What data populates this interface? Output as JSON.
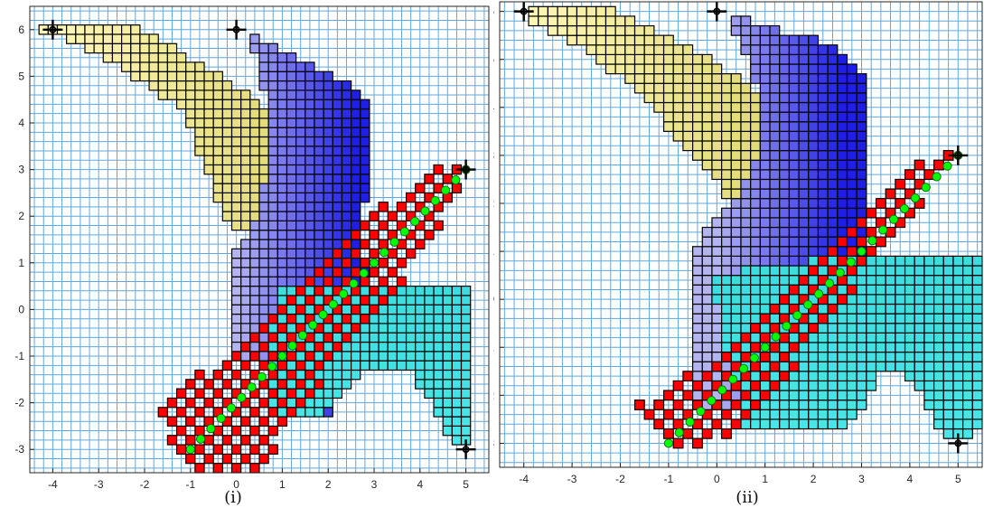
{
  "colors": {
    "grid": "#63a7da",
    "cell_edge": "#000000",
    "red": "#ff0000",
    "yellow": "#ffff7a",
    "blue_light": "#b4b4f0",
    "blue_dark": "#1e1ee6",
    "cyan": "#33e6e6",
    "path_fill": "#00ff00",
    "path_edge": "#1a6b1a",
    "marker": "#000000"
  },
  "chart_data": [
    {
      "type": "scatter",
      "caption": "(i)",
      "xlim": [
        -4.5,
        5.5
      ],
      "ylim": [
        -3.5,
        6.5
      ],
      "xticks": [
        "-4",
        "-3",
        "-2",
        "-1",
        "0",
        "1",
        "2",
        "3",
        "4",
        "5"
      ],
      "yticks": [
        "-3",
        "-2",
        "-1",
        "0",
        "1",
        "2",
        "3",
        "4",
        "5",
        "6"
      ],
      "grid": true,
      "markers": [
        {
          "x": -4,
          "y": 6
        },
        {
          "x": 0,
          "y": 6
        },
        {
          "x": 5,
          "y": 3
        },
        {
          "x": 5,
          "y": -3
        }
      ],
      "path": {
        "start": [
          -1,
          -3
        ],
        "end": [
          5,
          3
        ],
        "points": 28
      },
      "regions": {
        "yellow": [
          [
            -4.2,
            6.1
          ],
          [
            -2.2,
            6.1
          ],
          [
            -1.2,
            5.5
          ],
          [
            0.3,
            4.6
          ],
          [
            1.2,
            3.5
          ],
          [
            1.0,
            2.4
          ],
          [
            0.5,
            1.7
          ],
          [
            -0.1,
            1.7
          ],
          [
            -0.5,
            2.6
          ],
          [
            -1.2,
            4.3
          ],
          [
            -2.5,
            5.2
          ],
          [
            -3.6,
            5.8
          ],
          [
            -4.2,
            6.0
          ]
        ],
        "blue": [
          [
            0.2,
            6.0
          ],
          [
            1.3,
            5.4
          ],
          [
            2.6,
            4.8
          ],
          [
            2.9,
            4.4
          ],
          [
            2.9,
            3.0
          ],
          [
            2.7,
            1.5
          ],
          [
            2.9,
            0.5
          ],
          [
            2.9,
            -0.8
          ],
          [
            2.0,
            -2.3
          ],
          [
            0.8,
            -2.3
          ],
          [
            0.6,
            -1.0
          ],
          [
            0.0,
            -1.0
          ],
          [
            0.0,
            1.2
          ],
          [
            0.3,
            1.5
          ],
          [
            0.5,
            2.3
          ],
          [
            0.8,
            3.3
          ],
          [
            0.7,
            4.4
          ],
          [
            0.5,
            5.2
          ],
          [
            0.2,
            5.9
          ]
        ],
        "cyan": [
          [
            0.9,
            0.5
          ],
          [
            3.0,
            0.5
          ],
          [
            5.2,
            0.5
          ],
          [
            5.2,
            -2.0
          ],
          [
            5.1,
            -3.0
          ],
          [
            4.7,
            -2.9
          ],
          [
            4.3,
            -2.0
          ],
          [
            3.7,
            -1.2
          ],
          [
            2.8,
            -1.3
          ],
          [
            1.7,
            -2.3
          ],
          [
            0.8,
            -2.3
          ],
          [
            0.8,
            -0.4
          ]
        ],
        "red_band": [
          [
            -1.7,
            -2.3
          ],
          [
            -1.0,
            -3.5
          ],
          [
            0.5,
            -3.5
          ],
          [
            2.5,
            -0.7
          ],
          [
            4.2,
            1.3
          ],
          [
            5.0,
            3.0
          ],
          [
            4.7,
            3.2
          ],
          [
            3.0,
            2.1
          ],
          [
            0.0,
            -1.0
          ],
          [
            -0.7,
            -1.3
          ],
          [
            -1.7,
            -2.2
          ]
        ]
      }
    },
    {
      "type": "scatter",
      "caption": "(ii)",
      "xlim": [
        -4.5,
        5.5
      ],
      "ylim": [
        -3.5,
        6.2
      ],
      "xticks": [
        "-4",
        "-3",
        "-2",
        "-1",
        "0",
        "1",
        "2",
        "3",
        "4",
        "5"
      ],
      "yticks": [
        "-3",
        "-2",
        "-1",
        "0",
        "1",
        "2",
        "3",
        "4",
        "5",
        "6"
      ],
      "grid": true,
      "markers": [
        {
          "x": -4,
          "y": 6
        },
        {
          "x": 0,
          "y": 6
        },
        {
          "x": 5,
          "y": 3
        },
        {
          "x": 5,
          "y": -3
        }
      ],
      "path": {
        "start": [
          -1,
          -3
        ],
        "end": [
          5,
          3
        ],
        "points": 28
      },
      "regions": {
        "yellow": [
          [
            -3.8,
            6.1
          ],
          [
            -2.2,
            6.1
          ],
          [
            -1.0,
            5.5
          ],
          [
            0.3,
            4.7
          ],
          [
            1.3,
            3.9
          ],
          [
            1.8,
            3.0
          ],
          [
            1.6,
            2.3
          ],
          [
            1.0,
            1.9
          ],
          [
            0.2,
            2.2
          ],
          [
            -0.7,
            3.2
          ],
          [
            -1.5,
            4.2
          ],
          [
            -2.8,
            5.3
          ],
          [
            -3.8,
            5.8
          ]
        ],
        "blue": [
          [
            0.3,
            6.0
          ],
          [
            1.3,
            5.6
          ],
          [
            2.5,
            5.3
          ],
          [
            3.0,
            4.8
          ],
          [
            3.2,
            4.0
          ],
          [
            3.2,
            2.4
          ],
          [
            3.2,
            1.0
          ],
          [
            2.8,
            -0.5
          ],
          [
            2.0,
            -1.8
          ],
          [
            1.0,
            -2.2
          ],
          [
            -0.5,
            -2.3
          ],
          [
            -0.5,
            -1.0
          ],
          [
            -0.5,
            0.8
          ],
          [
            -0.2,
            1.5
          ],
          [
            0.6,
            2.4
          ],
          [
            1.0,
            3.3
          ],
          [
            0.8,
            4.5
          ],
          [
            0.5,
            5.3
          ],
          [
            0.3,
            5.9
          ]
        ],
        "cyan": [
          [
            -0.1,
            0.5
          ],
          [
            2.5,
            0.9
          ],
          [
            5.5,
            0.9
          ],
          [
            5.5,
            -1.5
          ],
          [
            5.4,
            -2.8
          ],
          [
            4.8,
            -3.0
          ],
          [
            4.2,
            -1.8
          ],
          [
            3.8,
            -1.4
          ],
          [
            3.4,
            -1.6
          ],
          [
            2.8,
            -2.6
          ],
          [
            0.6,
            -2.7
          ],
          [
            0.2,
            -1.2
          ]
        ],
        "red_band": [
          [
            -1.7,
            -2.3
          ],
          [
            -1.0,
            -3.2
          ],
          [
            0.6,
            -2.7
          ],
          [
            2.6,
            -0.2
          ],
          [
            3.4,
            1.0
          ],
          [
            4.4,
            2.2
          ],
          [
            5.0,
            3.0
          ],
          [
            4.7,
            3.2
          ],
          [
            3.6,
            2.4
          ],
          [
            3.0,
            1.7
          ],
          [
            0.8,
            -0.4
          ],
          [
            -0.3,
            -1.4
          ],
          [
            -1.7,
            -2.2
          ]
        ]
      }
    }
  ]
}
